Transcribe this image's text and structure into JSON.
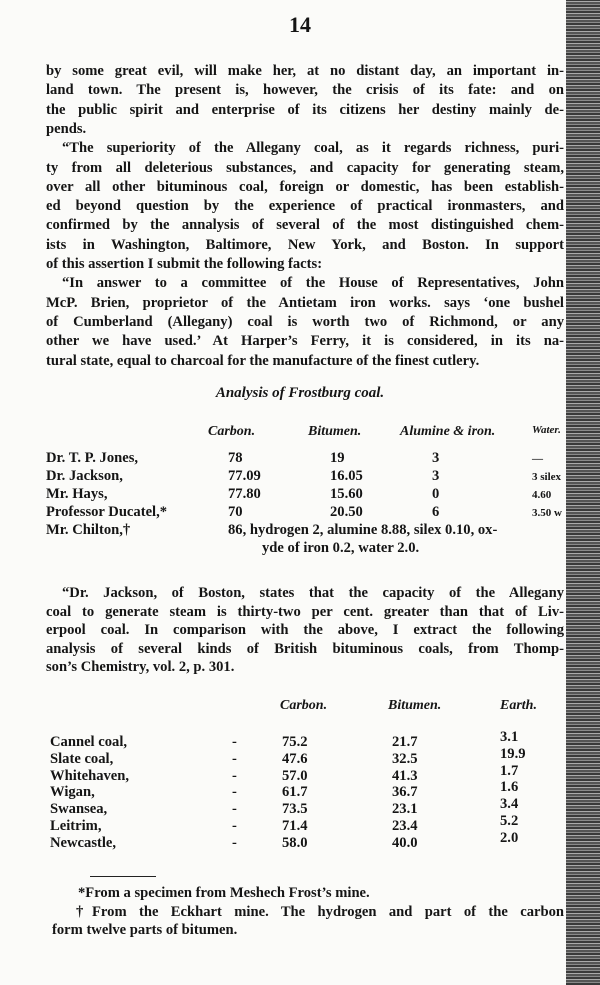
{
  "page_number": "14",
  "paragraph1": [
    "by some great evil, will make her, at no distant day, an important in-",
    "land town.   The present is, however, the crisis of its fate: and on",
    "the public spirit and enterprise of its citizens her destiny mainly de-",
    "pends.",
    "“The superiority of the Allegany coal, as it regards richness, puri-",
    "ty from all deleterious substances, and capacity for generating steam,",
    "over all other bituminous coal, foreign or domestic, has been establish-",
    "ed beyond question by the experience of practical ironmasters, and",
    "confirmed by the annalysis of several of the most distinguished chem-",
    "ists in Washington, Baltimore, New York, and Boston.  In support",
    "of this assertion I submit the following facts:",
    "“In answer to a committee of the House of Representatives, John",
    "McP. Brien, proprietor of the Antietam iron works. says ‘one bushel",
    "of Cumberland (Allegany) coal is worth two of Richmond, or any",
    "other we have used.’  At Harper’s Ferry, it is considered, in its na-",
    "tural state, equal to charcoal for the manufacture of the finest cutlery."
  ],
  "table1": {
    "title": "Analysis of Frostburg coal.",
    "headers": [
      "Carbon.",
      "Bitumen.",
      "Alumine & iron.",
      "Water."
    ],
    "rows": [
      {
        "name": "Dr. T. P. Jones,",
        "values": [
          "78",
          "19",
          "3",
          "—"
        ]
      },
      {
        "name": "Dr. Jackson,",
        "values": [
          "77.09",
          "16.05",
          "3",
          "3 silex"
        ]
      },
      {
        "name": "Mr. Hays,",
        "values": [
          "77.80",
          "15.60",
          "0",
          "4.60"
        ]
      },
      {
        "name": "Professor Ducatel,*",
        "values": [
          "70",
          "20.50",
          "6",
          "3.50 w"
        ]
      }
    ],
    "chilton": {
      "name": "Mr. Chilton,†",
      "line1": "86, hydrogen 2, alumine 8.88, silex 0.10, ox-",
      "line2": "yde of iron 0.2, water 2.0."
    }
  },
  "paragraph2": [
    "“Dr. Jackson, of Boston, states that the capacity of the Allegany",
    "coal to generate steam is thirty-two per cent. greater than that of Liv-",
    "erpool coal.  In comparison with the above, I extract the following",
    "analysis of several kinds of British bituminous coals, from Thomp-",
    "son’s Chemistry, vol. 2, p. 301."
  ],
  "table2": {
    "headers": [
      "Carbon.",
      "Bitumen.",
      "Earth."
    ],
    "rows": [
      {
        "name": "Cannel coal,",
        "values": [
          "75.2",
          "21.7",
          "3.1"
        ]
      },
      {
        "name": "Slate coal,",
        "values": [
          "47.6",
          "32.5",
          "19.9"
        ]
      },
      {
        "name": "Whitehaven,",
        "values": [
          "57.0",
          "41.3",
          "1.7"
        ]
      },
      {
        "name": "Wigan,",
        "values": [
          "61.7",
          "36.7",
          "1.6"
        ]
      },
      {
        "name": "Swansea,",
        "values": [
          "73.5",
          "23.1",
          "3.4"
        ]
      },
      {
        "name": "Leitrim,",
        "values": [
          "71.4",
          "23.4",
          "5.2"
        ]
      },
      {
        "name": "Newcastle,",
        "values": [
          "58.0",
          "40.0",
          "2.0"
        ]
      }
    ],
    "dash": "-"
  },
  "footnotes": [
    "*From a specimen from Meshech Frost’s mine.",
    "†From the Eckhart mine.  The hydrogen and part of the carbon",
    "form twelve parts of bitumen."
  ]
}
